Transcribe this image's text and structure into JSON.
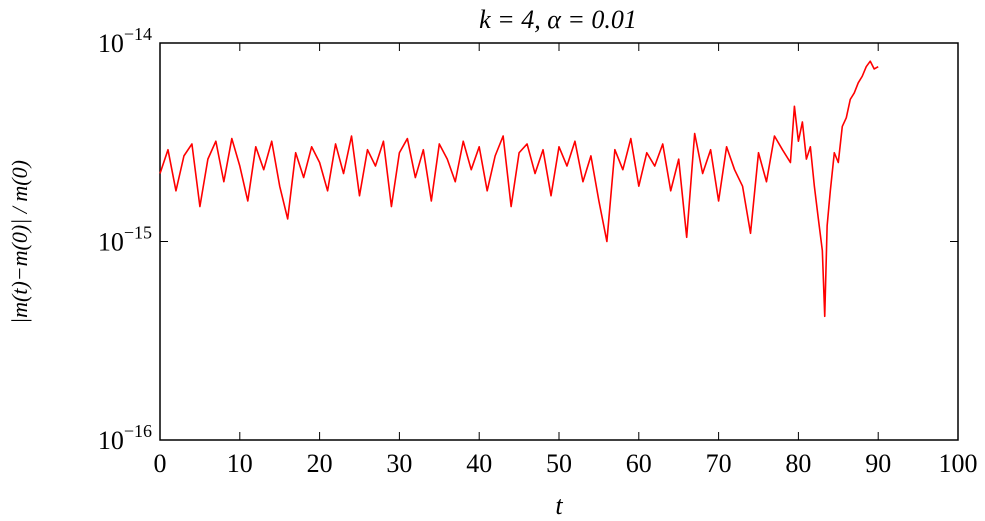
{
  "chart_data": {
    "type": "line",
    "title": "k = 4, α = 0.01",
    "xlabel": "t",
    "ylabel": "|m(t)−m(0)| / m(0)",
    "log_y": true,
    "color": "#ff0000",
    "xlim": [
      0,
      100
    ],
    "xticks": [
      0,
      10,
      20,
      30,
      40,
      50,
      60,
      70,
      80,
      90,
      100
    ],
    "ylim": [
      1e-16,
      1e-14
    ],
    "yticks": [
      {
        "value": 1e-16,
        "label": "10−16"
      },
      {
        "value": 1e-15,
        "label": "10−15"
      },
      {
        "value": 1e-14,
        "label": "10−14"
      }
    ],
    "x": [
      0,
      1,
      2,
      3,
      4,
      5,
      6,
      7,
      8,
      9,
      10,
      11,
      12,
      13,
      14,
      15,
      16,
      17,
      18,
      19,
      20,
      21,
      22,
      23,
      24,
      25,
      26,
      27,
      28,
      29,
      30,
      31,
      32,
      33,
      34,
      35,
      36,
      37,
      38,
      39,
      40,
      41,
      42,
      43,
      44,
      45,
      46,
      47,
      48,
      49,
      50,
      51,
      52,
      53,
      54,
      55,
      56,
      57,
      58,
      59,
      60,
      61,
      62,
      63,
      64,
      65,
      66,
      67,
      68,
      69,
      70,
      71,
      72,
      73,
      74,
      75,
      76,
      77,
      78,
      79,
      79.5,
      80,
      80.5,
      81,
      81.5,
      82,
      82.5,
      83,
      83.3,
      83.6,
      84,
      84.5,
      85,
      85.5,
      86,
      86.5,
      87,
      87.5,
      88,
      88.5,
      89,
      89.5,
      90
    ],
    "values": [
      2.2e-15,
      2.9e-15,
      1.8e-15,
      2.7e-15,
      3.1e-15,
      1.5e-15,
      2.6e-15,
      3.2e-15,
      2e-15,
      3.3e-15,
      2.4e-15,
      1.6e-15,
      3e-15,
      2.3e-15,
      3.2e-15,
      1.9e-15,
      1.3e-15,
      2.8e-15,
      2.1e-15,
      3e-15,
      2.5e-15,
      1.8e-15,
      3.1e-15,
      2.2e-15,
      3.4e-15,
      1.7e-15,
      2.9e-15,
      2.4e-15,
      3.2e-15,
      1.5e-15,
      2.8e-15,
      3.3e-15,
      2.1e-15,
      2.9e-15,
      1.6e-15,
      3.1e-15,
      2.6e-15,
      2e-15,
      3.2e-15,
      2.3e-15,
      3e-15,
      1.8e-15,
      2.7e-15,
      3.4e-15,
      1.5e-15,
      2.8e-15,
      3.1e-15,
      2.2e-15,
      2.9e-15,
      1.7e-15,
      3e-15,
      2.4e-15,
      3.2e-15,
      2e-15,
      2.7e-15,
      1.6e-15,
      1e-15,
      2.9e-15,
      2.3e-15,
      3.3e-15,
      1.9e-15,
      2.8e-15,
      2.4e-15,
      3.1e-15,
      1.8e-15,
      2.6e-15,
      1.05e-15,
      3.5e-15,
      2.2e-15,
      2.9e-15,
      1.6e-15,
      3e-15,
      2.3e-15,
      1.9e-15,
      1.1e-15,
      2.8e-15,
      2e-15,
      3.4e-15,
      2.9e-15,
      2.5e-15,
      4.8e-15,
      3.2e-15,
      4e-15,
      2.6e-15,
      3e-15,
      1.9e-15,
      1.3e-15,
      9e-16,
      4.2e-16,
      1.2e-15,
      1.8e-15,
      2.8e-15,
      2.5e-15,
      3.8e-15,
      4.2e-15,
      5.2e-15,
      5.6e-15,
      6.3e-15,
      6.8e-15,
      7.6e-15,
      8.1e-15,
      7.4e-15,
      7.6e-15
    ]
  }
}
